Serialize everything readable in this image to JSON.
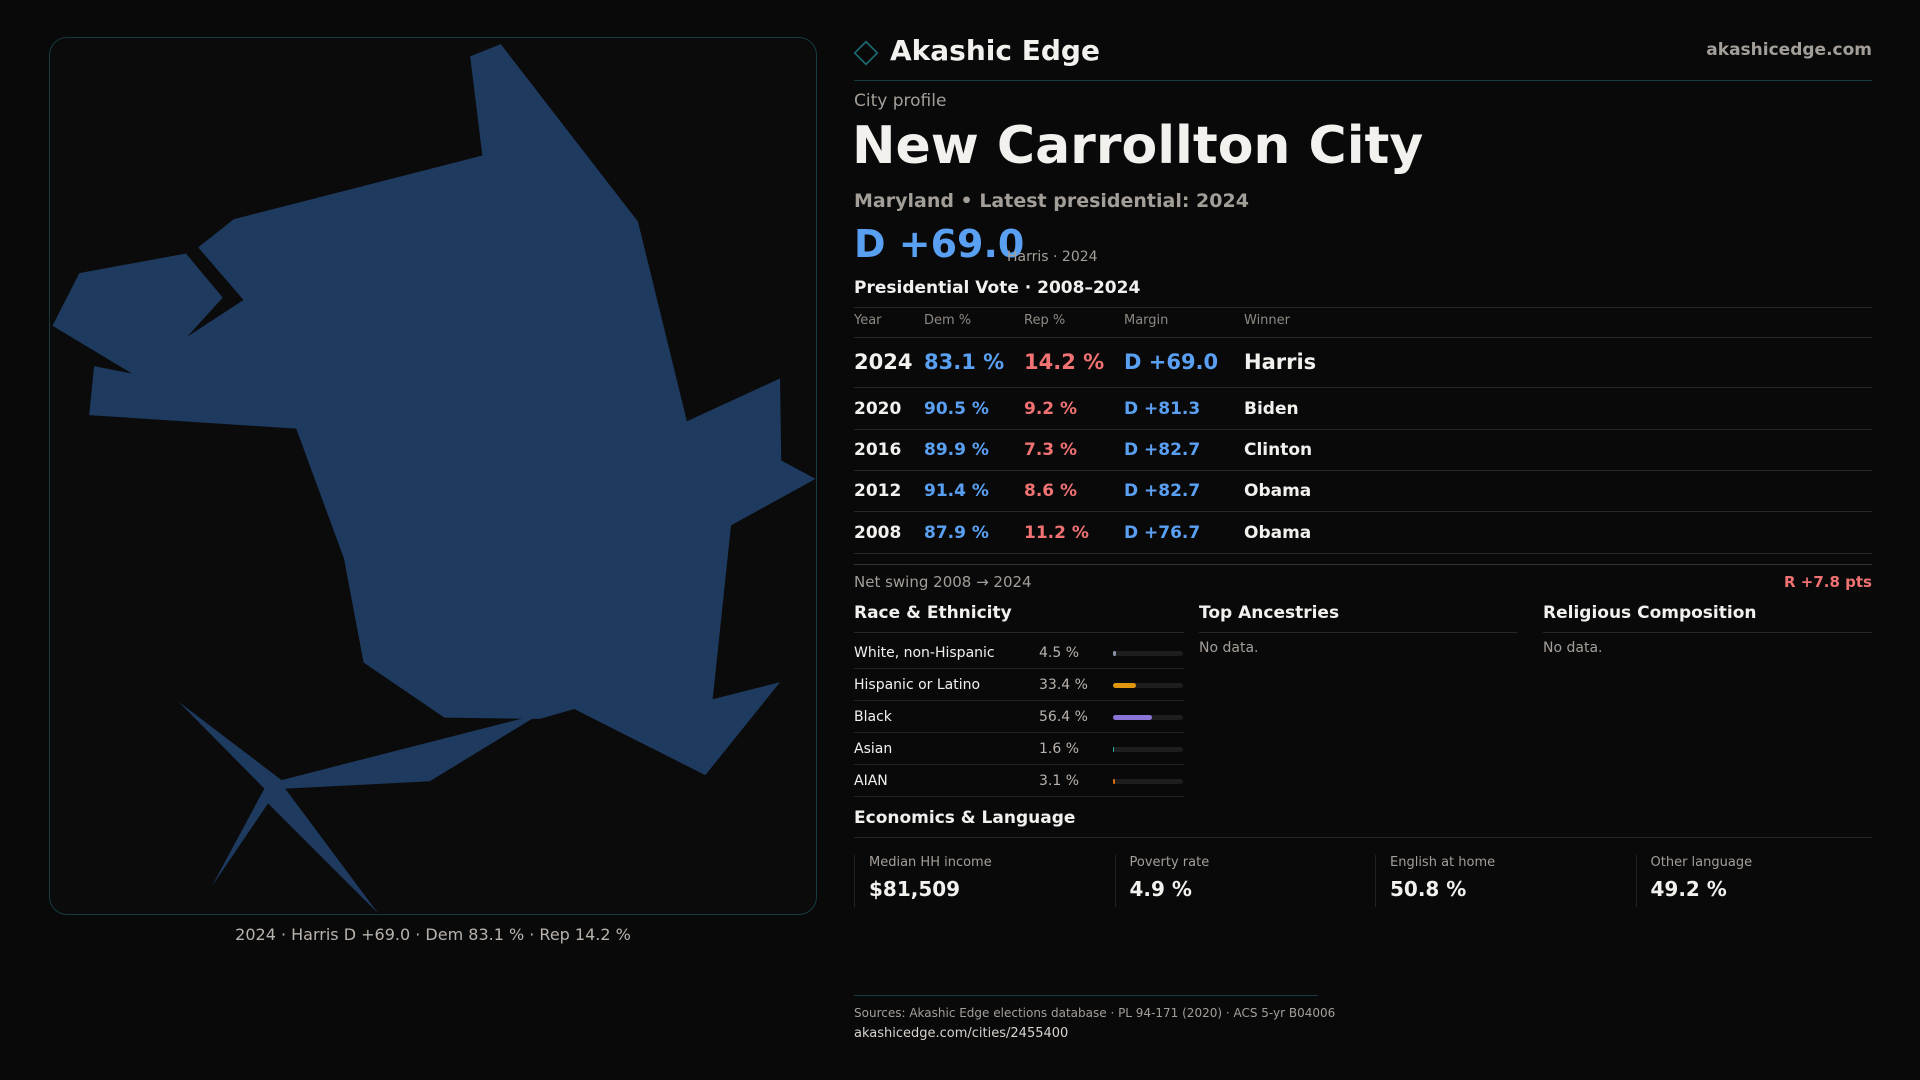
{
  "brand": {
    "name": "Akashic Edge",
    "site": "akashicedge.com",
    "accent": "#1d6b73"
  },
  "header": {
    "kicker": "City profile",
    "title": "New Carrollton City",
    "subtitle": "Maryland • Latest presidential: 2024",
    "margin": "D +69.0",
    "margin_note": "Harris · 2024"
  },
  "map": {
    "fill": "#1e3a5f",
    "caption": "2024 · Harris D +69.0 · Dem 83.1 % · Rep 14.2 %"
  },
  "votes": {
    "title": "Presidential Vote · 2008–2024",
    "columns": [
      "Year",
      "Dem %",
      "Rep %",
      "Margin",
      "Winner"
    ],
    "rows": [
      {
        "year": "2024",
        "dem": "83.1 %",
        "rep": "14.2 %",
        "margin": "D +69.0",
        "winner": "Harris"
      },
      {
        "year": "2020",
        "dem": "90.5 %",
        "rep": "9.2 %",
        "margin": "D +81.3",
        "winner": "Biden"
      },
      {
        "year": "2016",
        "dem": "89.9 %",
        "rep": "7.3 %",
        "margin": "D +82.7",
        "winner": "Clinton"
      },
      {
        "year": "2012",
        "dem": "91.4 %",
        "rep": "8.6 %",
        "margin": "D +82.7",
        "winner": "Obama"
      },
      {
        "year": "2008",
        "dem": "87.9 %",
        "rep": "11.2 %",
        "margin": "D +76.7",
        "winner": "Obama"
      }
    ],
    "swing_label": "Net swing 2008 → 2024",
    "swing_value": "R +7.8 pts"
  },
  "race": {
    "title": "Race & Ethnicity",
    "items": [
      {
        "label": "White, non-Hispanic",
        "pct": "4.5 %",
        "value": 4.5,
        "color": "#8a93a6"
      },
      {
        "label": "Hispanic or Latino",
        "pct": "33.4 %",
        "value": 33.4,
        "color": "#e0970f"
      },
      {
        "label": "Black",
        "pct": "56.4 %",
        "value": 56.4,
        "color": "#8b74d8"
      },
      {
        "label": "Asian",
        "pct": "1.6 %",
        "value": 1.6,
        "color": "#2ab09a"
      },
      {
        "label": "AIAN",
        "pct": "3.1 %",
        "value": 3.1,
        "color": "#e0700f"
      }
    ]
  },
  "ancestries": {
    "title": "Top Ancestries",
    "empty": "No data."
  },
  "religion": {
    "title": "Religious Composition",
    "empty": "No data."
  },
  "economics": {
    "title": "Economics & Language",
    "items": [
      {
        "label": "Median HH income",
        "value": "$81,509"
      },
      {
        "label": "Poverty rate",
        "value": "4.9 %"
      },
      {
        "label": "English at home",
        "value": "50.8 %"
      },
      {
        "label": "Other language",
        "value": "49.2 %"
      }
    ]
  },
  "footer": {
    "sources": "Sources: Akashic Edge elections database · PL 94-171 (2020) · ACS 5-yr B04006",
    "url": "akashicedge.com/cities/2455400"
  }
}
